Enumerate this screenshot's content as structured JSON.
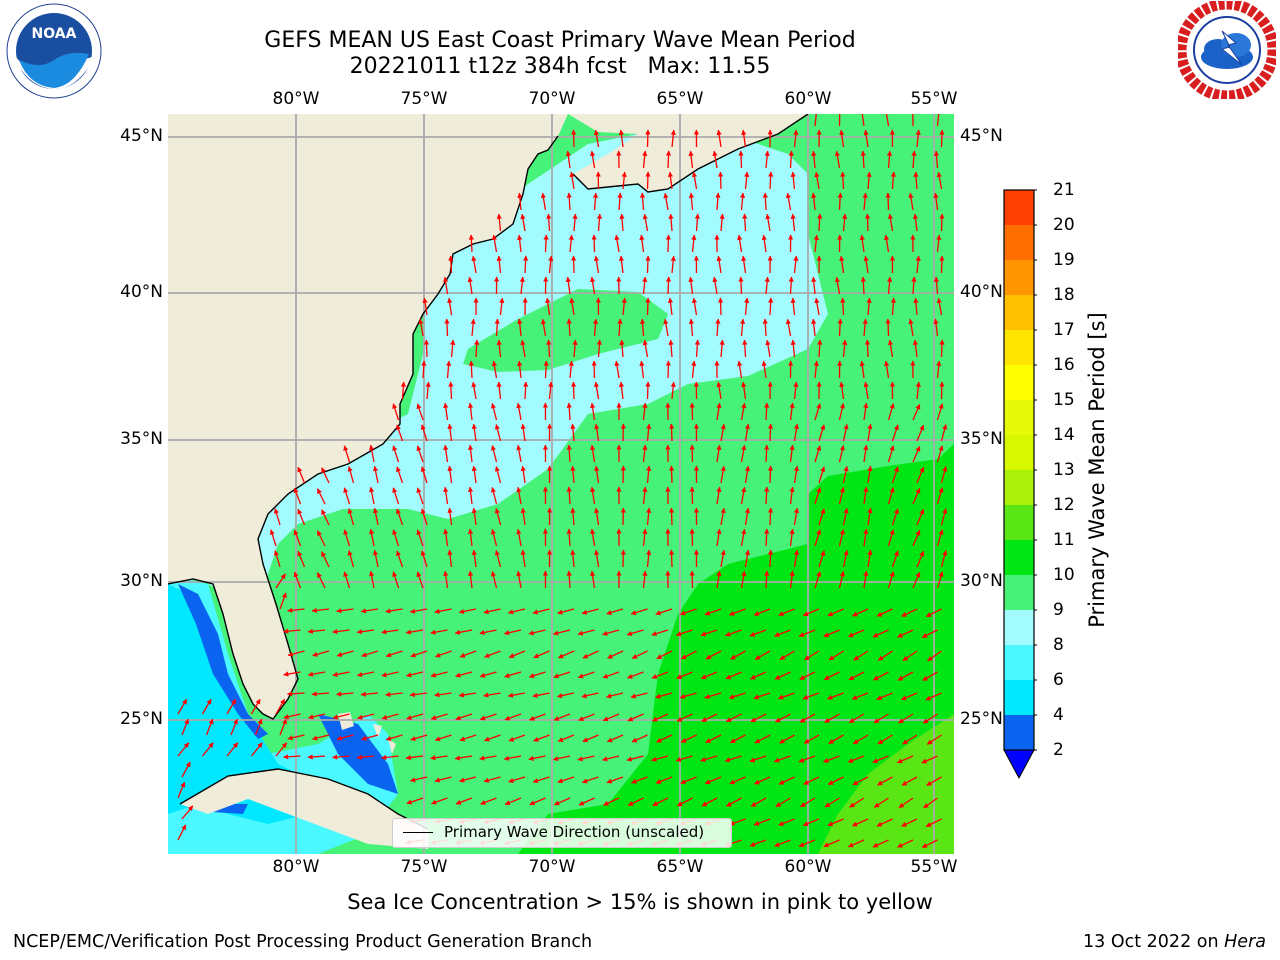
{
  "title_line1": "GEFS MEAN US East Coast Primary Wave Mean Period",
  "title_line2": "20221011 t12z 384h fcst   Max: 11.55",
  "longitude_labels": [
    "80°W",
    "75°W",
    "70°W",
    "65°W",
    "60°W",
    "55°W"
  ],
  "latitude_labels": [
    "45°N",
    "40°N",
    "35°N",
    "30°N",
    "25°N"
  ],
  "colorbar": {
    "label": "Primary Wave Mean Period [s]",
    "ticks": [
      "2",
      "4",
      "6",
      "8",
      "9",
      "10",
      "11",
      "12",
      "13",
      "14",
      "15",
      "16",
      "17",
      "18",
      "19",
      "20",
      "21"
    ],
    "colors": [
      "#0a64f0",
      "#00e8ff",
      "#4cf8ff",
      "#a2fcff",
      "#46f278",
      "#00e614",
      "#5ae614",
      "#aaf00a",
      "#d8f800",
      "#e6fa0a",
      "#fefe00",
      "#ffe600",
      "#ffc000",
      "#ff9600",
      "#ff6e00",
      "#ff4000",
      "#ff1400"
    ],
    "under_color": "#0000ff"
  },
  "legend_label": "Primary Wave Direction (unscaled)",
  "sea_ice_note": "Sea Ice Concentration > 15% is shown in pink to yellow",
  "footer_left": "NCEP/EMC/Verification Post Processing Product Generation Branch",
  "footer_date": "13 Oct 2022 on ",
  "footer_machine": "Hera",
  "logos": {
    "left": "NOAA",
    "right": "NATIONAL WEATHER SERVICE"
  },
  "colors": {
    "land": "#efecda",
    "grid": "#aaaaaa",
    "arrow": "#ff0000",
    "coast": "#000000"
  }
}
